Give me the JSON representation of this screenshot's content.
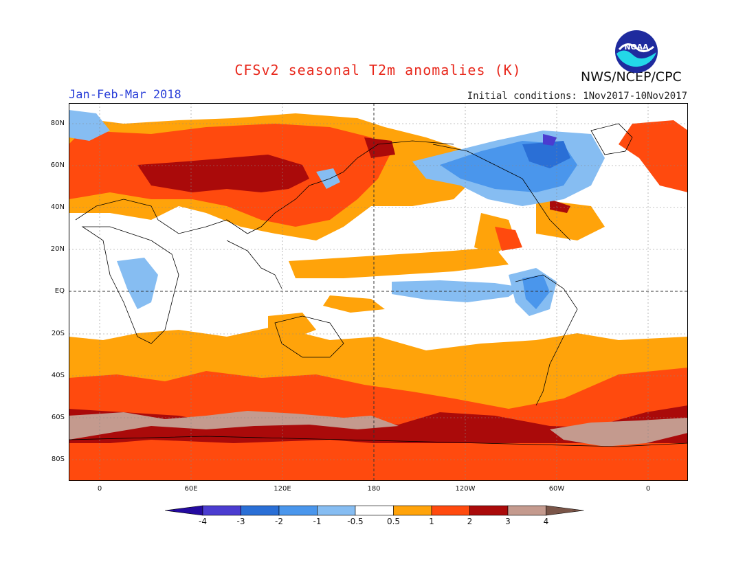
{
  "header": {
    "title": "CFSv2 seasonal T2m anomalies (K)",
    "period": "Jan-Feb-Mar 2018",
    "initial_conditions": "Initial conditions: 1Nov2017-10Nov2017",
    "agency": "NWS/NCEP/CPC",
    "logo_text": "NOAA"
  },
  "map": {
    "lat_labels": [
      "80N",
      "60N",
      "40N",
      "20N",
      "EQ",
      "20S",
      "40S",
      "60S",
      "80S"
    ],
    "lon_labels": [
      "0",
      "60E",
      "120E",
      "180",
      "120W",
      "60W",
      "0"
    ]
  },
  "colorbar": {
    "tick_labels": [
      "-4",
      "-3",
      "-2",
      "-1",
      "-0.5",
      "0.5",
      "1",
      "2",
      "3",
      "4"
    ],
    "colors": [
      "#240aa0",
      "#4b3cd0",
      "#2a6fd6",
      "#4a96ec",
      "#86bdf2",
      "#ffffff",
      "#ffa30a",
      "#ff4a0e",
      "#aa0a0a",
      "#c49a8e",
      "#7a5548"
    ]
  }
}
